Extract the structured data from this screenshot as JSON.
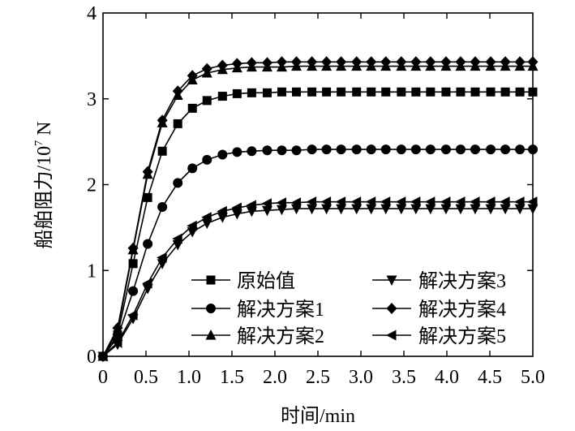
{
  "chart_data": {
    "type": "line",
    "xlabel": "时间/min",
    "ylabel": "船舶阻力/10",
    "ylabel_sup": "7",
    "ylabel_unit": " N",
    "xlim": [
      0,
      5
    ],
    "ylim": [
      0,
      4
    ],
    "x_ticks": [
      "0",
      "0.5",
      "1.0",
      "1.5",
      "2.0",
      "2.5",
      "3.0",
      "3.5",
      "4.0",
      "4.5",
      "5.0"
    ],
    "y_ticks": [
      "0",
      "1",
      "2",
      "3",
      "4"
    ],
    "grid": false,
    "legend_position": "bottom-center",
    "x": [
      0,
      0.17,
      0.35,
      0.52,
      0.69,
      0.87,
      1.04,
      1.21,
      1.39,
      1.56,
      1.73,
      1.91,
      2.08,
      2.25,
      2.43,
      2.6,
      2.77,
      2.95,
      3.12,
      3.29,
      3.47,
      3.64,
      3.81,
      3.99,
      4.16,
      4.33,
      4.51,
      4.68,
      4.85,
      5.0
    ],
    "series": [
      {
        "name": "原始值",
        "marker": "square",
        "values": [
          0,
          0.25,
          1.08,
          1.85,
          2.39,
          2.71,
          2.89,
          2.98,
          3.03,
          3.06,
          3.07,
          3.07,
          3.08,
          3.08,
          3.08,
          3.08,
          3.08,
          3.08,
          3.08,
          3.08,
          3.08,
          3.08,
          3.08,
          3.08,
          3.08,
          3.08,
          3.08,
          3.08,
          3.08,
          3.08
        ]
      },
      {
        "name": "解决方案1",
        "marker": "circle",
        "values": [
          0,
          0.22,
          0.76,
          1.31,
          1.74,
          2.02,
          2.19,
          2.29,
          2.35,
          2.38,
          2.39,
          2.4,
          2.4,
          2.4,
          2.41,
          2.41,
          2.41,
          2.41,
          2.41,
          2.41,
          2.41,
          2.41,
          2.41,
          2.41,
          2.41,
          2.41,
          2.41,
          2.41,
          2.41,
          2.41
        ]
      },
      {
        "name": "解决方案2",
        "marker": "triangle-up",
        "values": [
          0,
          0.3,
          1.24,
          2.12,
          2.72,
          3.04,
          3.22,
          3.3,
          3.34,
          3.36,
          3.37,
          3.37,
          3.37,
          3.38,
          3.38,
          3.38,
          3.38,
          3.38,
          3.38,
          3.38,
          3.38,
          3.38,
          3.38,
          3.38,
          3.38,
          3.38,
          3.38,
          3.38,
          3.38,
          3.38
        ]
      },
      {
        "name": "解决方案3",
        "marker": "triangle-down",
        "values": [
          0,
          0.14,
          0.44,
          0.79,
          1.08,
          1.3,
          1.45,
          1.55,
          1.62,
          1.66,
          1.69,
          1.7,
          1.71,
          1.72,
          1.72,
          1.72,
          1.72,
          1.72,
          1.72,
          1.72,
          1.72,
          1.72,
          1.72,
          1.72,
          1.72,
          1.72,
          1.72,
          1.72,
          1.72,
          1.72
        ]
      },
      {
        "name": "解决方案4",
        "marker": "diamond",
        "values": [
          0,
          0.33,
          1.26,
          2.15,
          2.75,
          3.09,
          3.27,
          3.35,
          3.39,
          3.41,
          3.42,
          3.42,
          3.43,
          3.43,
          3.43,
          3.43,
          3.43,
          3.43,
          3.43,
          3.43,
          3.43,
          3.43,
          3.43,
          3.43,
          3.43,
          3.43,
          3.43,
          3.43,
          3.43,
          3.43
        ]
      },
      {
        "name": "解决方案5",
        "marker": "triangle-left",
        "values": [
          0,
          0.16,
          0.48,
          0.85,
          1.15,
          1.37,
          1.52,
          1.62,
          1.69,
          1.73,
          1.76,
          1.78,
          1.79,
          1.79,
          1.8,
          1.8,
          1.8,
          1.8,
          1.8,
          1.8,
          1.8,
          1.8,
          1.8,
          1.8,
          1.8,
          1.8,
          1.8,
          1.8,
          1.8,
          1.8
        ]
      }
    ]
  }
}
